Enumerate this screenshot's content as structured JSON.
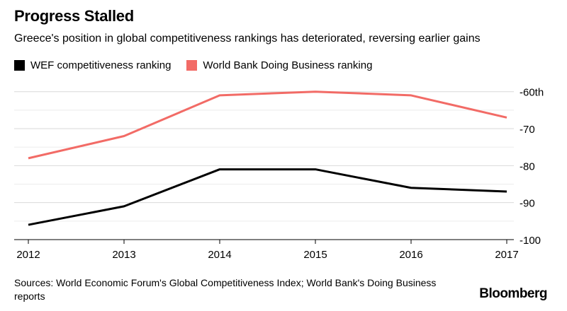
{
  "title": "Progress Stalled",
  "subtitle": "Greece's position in global competitiveness rankings has deteriorated, reversing earlier gains",
  "source": "Sources: World Economic Forum's Global Competitiveness Index; World Bank's Doing Business reports",
  "brand": "Bloomberg",
  "chart_data": {
    "type": "line",
    "x": [
      "2012",
      "2013",
      "2014",
      "2015",
      "2016",
      "2017"
    ],
    "ylim": [
      -100,
      -57
    ],
    "yticks": [
      -60,
      -70,
      -80,
      -90,
      -100
    ],
    "ytick_labels": [
      "-60th",
      "-70",
      "-80",
      "-90",
      "-100"
    ],
    "grid": true,
    "legend_position": "top-left",
    "series": [
      {
        "name": "WEF competitiveness ranking",
        "color": "#000000",
        "values": [
          -96,
          -91,
          -81,
          -81,
          -86,
          -87
        ]
      },
      {
        "name": "World Bank Doing Business ranking",
        "color": "#f26b66",
        "values": [
          -78,
          -72,
          -61,
          -60,
          -61,
          -67
        ]
      }
    ]
  }
}
